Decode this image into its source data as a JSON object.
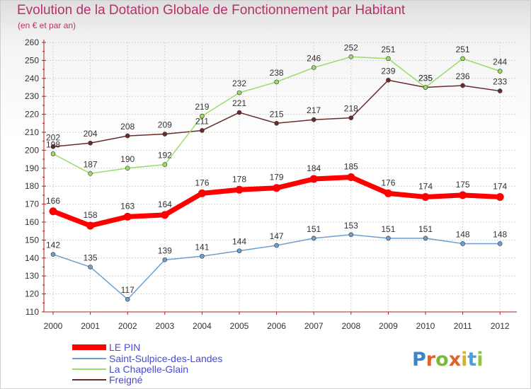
{
  "chart_data": {
    "type": "line",
    "title": "Evolution de la Dotation Globale de Fonctionnement par Habitant",
    "subtitle": "(en € et par an)",
    "x": [
      "2000",
      "2001",
      "2002",
      "2003",
      "2004",
      "2005",
      "2006",
      "2007",
      "2008",
      "2009",
      "2010",
      "2011",
      "2012"
    ],
    "ylim": [
      110,
      260
    ],
    "yticks": [
      110,
      120,
      130,
      140,
      150,
      160,
      170,
      180,
      190,
      200,
      210,
      220,
      230,
      240,
      250,
      260
    ],
    "grid": true,
    "legend_position": "bottom-left",
    "series": [
      {
        "name": "LE PIN",
        "color": "#ff0000",
        "values": [
          166,
          158,
          163,
          164,
          176,
          178,
          179,
          184,
          185,
          176,
          174,
          175,
          174
        ]
      },
      {
        "name": "Saint-Sulpice-des-Landes",
        "color": "#6f9fd0",
        "values": [
          142,
          135,
          117,
          139,
          141,
          144,
          147,
          151,
          153,
          151,
          151,
          148,
          148
        ]
      },
      {
        "name": "La Chapelle-Glain",
        "color": "#99dd66",
        "values": [
          198,
          187,
          190,
          192,
          219,
          232,
          238,
          246,
          252,
          251,
          235,
          251,
          244
        ]
      },
      {
        "name": "Freigné",
        "color": "#6b2b2b",
        "values": [
          202,
          204,
          208,
          209,
          211,
          221,
          215,
          217,
          218,
          239,
          235,
          236,
          233
        ]
      }
    ]
  },
  "brand": {
    "name": "Proxiti",
    "letters": [
      "P",
      "r",
      "o",
      "x",
      "i",
      "t",
      "i"
    ],
    "colors": [
      "#3a84c8",
      "#e0632a",
      "#7ab83a",
      "#e0632a",
      "#d6b22a",
      "#4aa0d8",
      "#8cc43a"
    ]
  }
}
